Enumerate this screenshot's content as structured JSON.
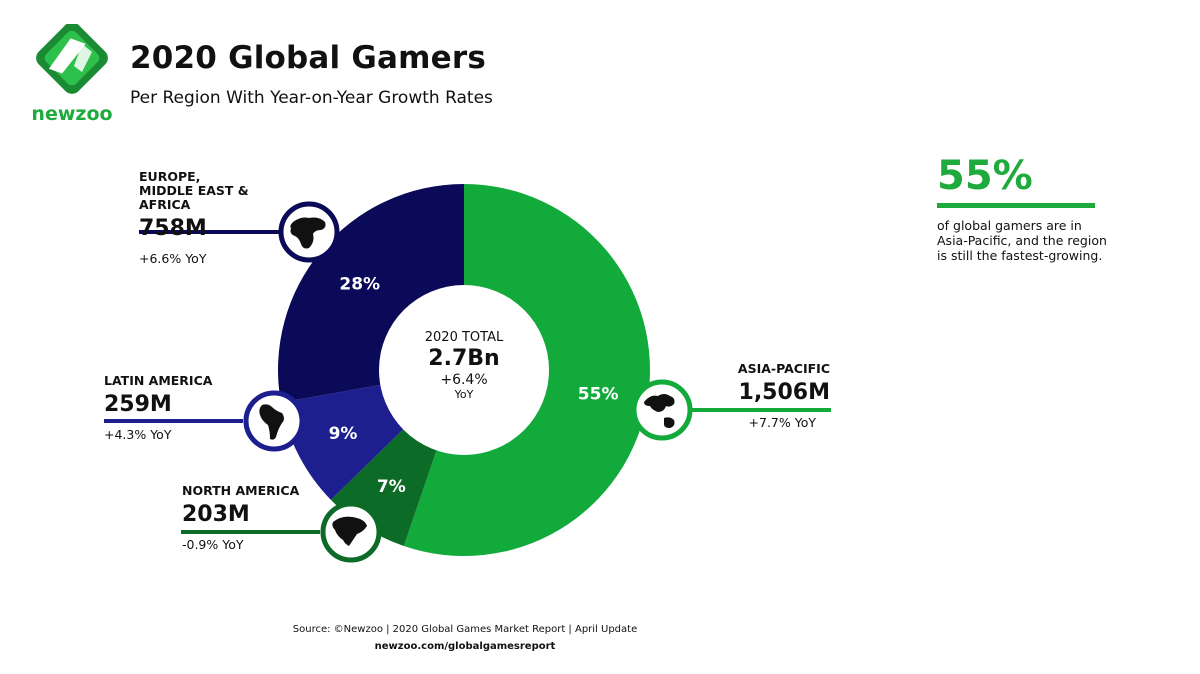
{
  "header": {
    "title": "2020 Global Gamers",
    "subtitle": "Per Region With Year-on-Year Growth Rates",
    "brand": "newzoo"
  },
  "colors": {
    "asia_pacific": "#13aa3c",
    "north_america": "#0c6b26",
    "latin_america": "#1e1f8f",
    "emea": "#0a0a58",
    "accent": "#1eaa3c"
  },
  "center": {
    "label": "2020 TOTAL",
    "value": "2.7Bn",
    "growth": "+6.4%",
    "growth_unit": "YoY"
  },
  "regions": [
    {
      "name": "ASIA-PACIFIC",
      "value": "1,506M",
      "growth": "+7.7% YoY",
      "icon": "asia-pacific-map-icon"
    },
    {
      "name": "NORTH AMERICA",
      "value": "203M",
      "growth": "-0.9% YoY",
      "icon": "north-america-map-icon"
    },
    {
      "name": "LATIN AMERICA",
      "value": "259M",
      "growth": "+4.3% YoY",
      "icon": "latin-america-map-icon"
    },
    {
      "name": "EUROPE, MIDDLE EAST & AFRICA",
      "value": "758M",
      "growth": "+6.6% YoY",
      "icon": "europe-africa-map-icon"
    }
  ],
  "chart_data": {
    "type": "pie",
    "style": "donut",
    "categories": [
      "Asia-Pacific",
      "North America",
      "Latin America",
      "Europe, Middle East & Africa"
    ],
    "values": [
      1506,
      203,
      259,
      758
    ],
    "percent_labels": [
      "55%",
      "7%",
      "9%",
      "28%"
    ],
    "growth_yoy": [
      "+7.7%",
      "-0.9%",
      "+4.3%",
      "+6.6%"
    ],
    "total": "2.7Bn",
    "total_growth_yoy": "+6.4%",
    "title": "2020 Global Gamers",
    "subtitle": "Per Region With Year-on-Year Growth Rates",
    "legend": "none"
  },
  "callout": {
    "percent": "55%",
    "text": "of global gamers are in Asia-Pacific, and the region is still the fastest-growing."
  },
  "footer": {
    "source": "Source: ©Newzoo | 2020 Global Games Market Report | April Update",
    "url": "newzoo.com/globalgamesreport"
  }
}
